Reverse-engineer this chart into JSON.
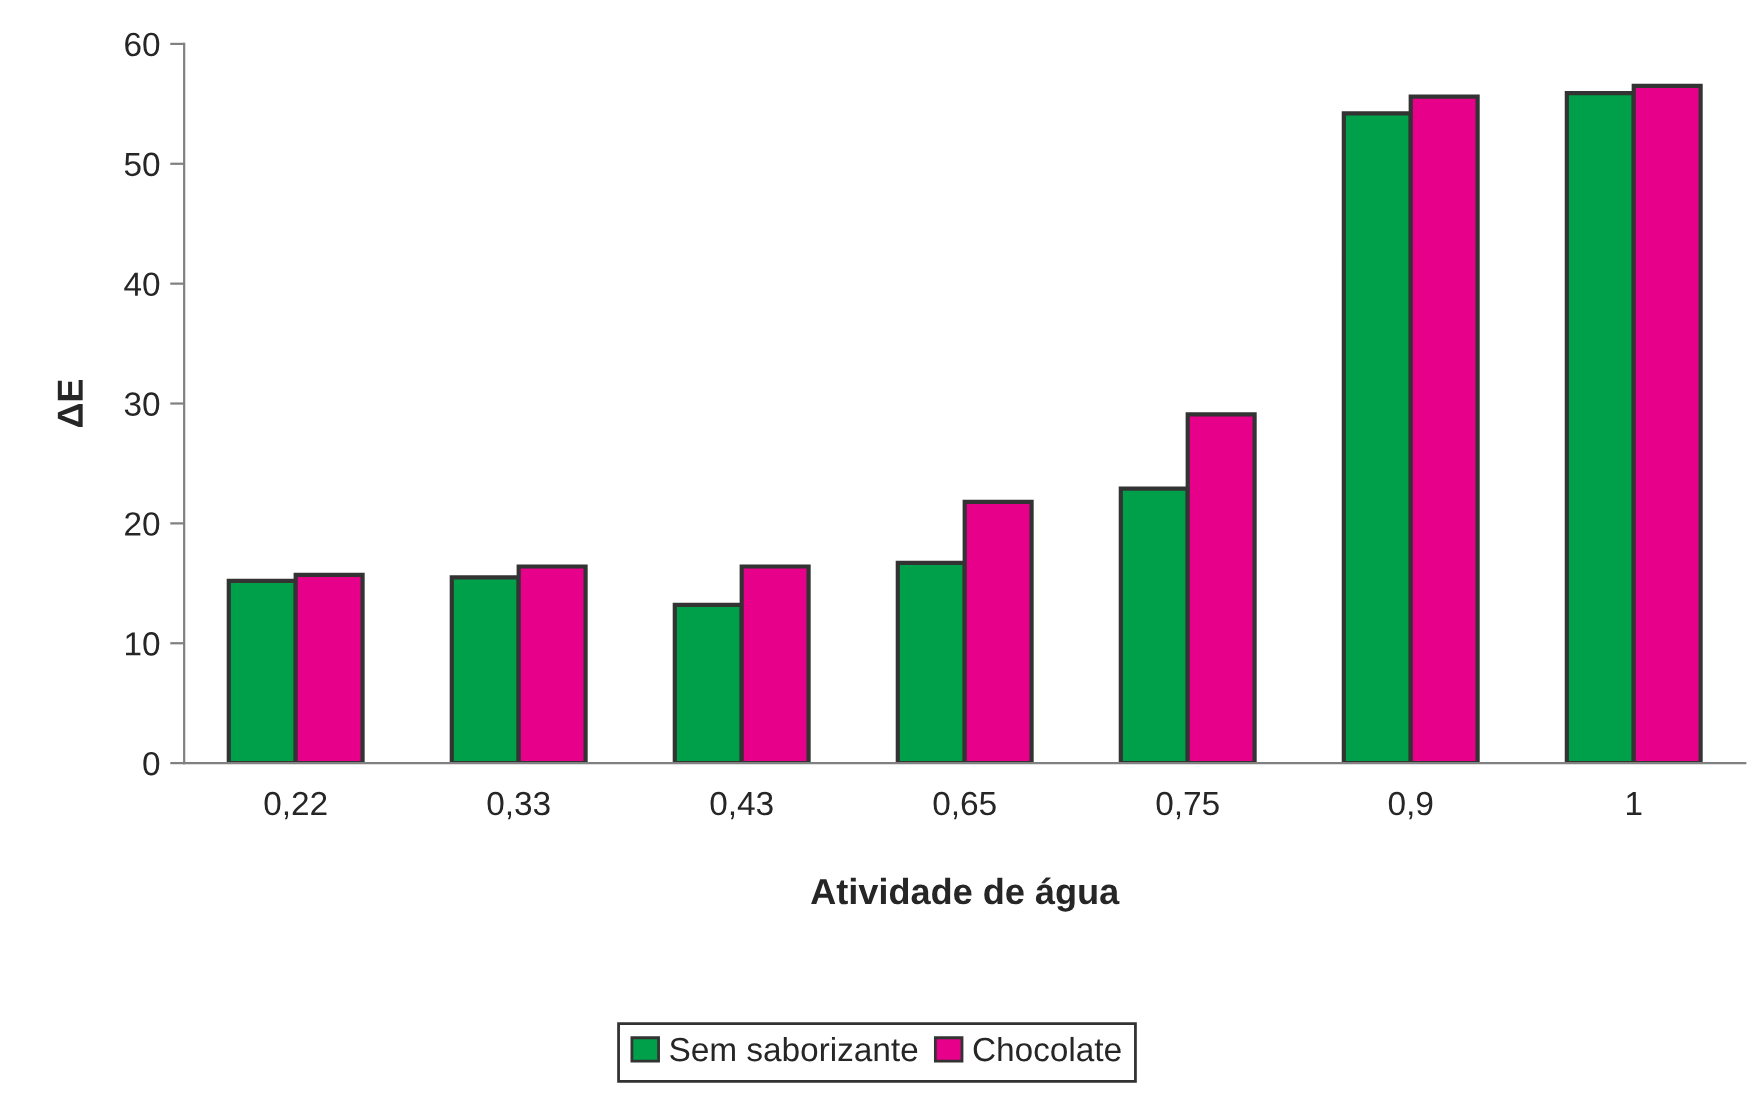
{
  "chart_data": {
    "type": "bar",
    "xlabel": "Atividade de água",
    "ylabel": "ΔE",
    "categories": [
      "0,22",
      "0,33",
      "0,43",
      "0,65",
      "0,75",
      "0,9",
      "1"
    ],
    "series": [
      {
        "name": "Sem saborizante",
        "color": "#00a04a",
        "values": [
          15.2,
          15.5,
          13.2,
          16.7,
          22.9,
          54.2,
          55.9
        ]
      },
      {
        "name": "Chocolate",
        "color": "#e6008a",
        "values": [
          15.7,
          16.4,
          16.4,
          21.8,
          29.1,
          55.6,
          56.5
        ]
      }
    ],
    "ylim": [
      0,
      60
    ],
    "yticks": [
      0,
      10,
      20,
      30,
      40,
      50,
      60
    ],
    "grid": false,
    "legend": "bottom"
  }
}
